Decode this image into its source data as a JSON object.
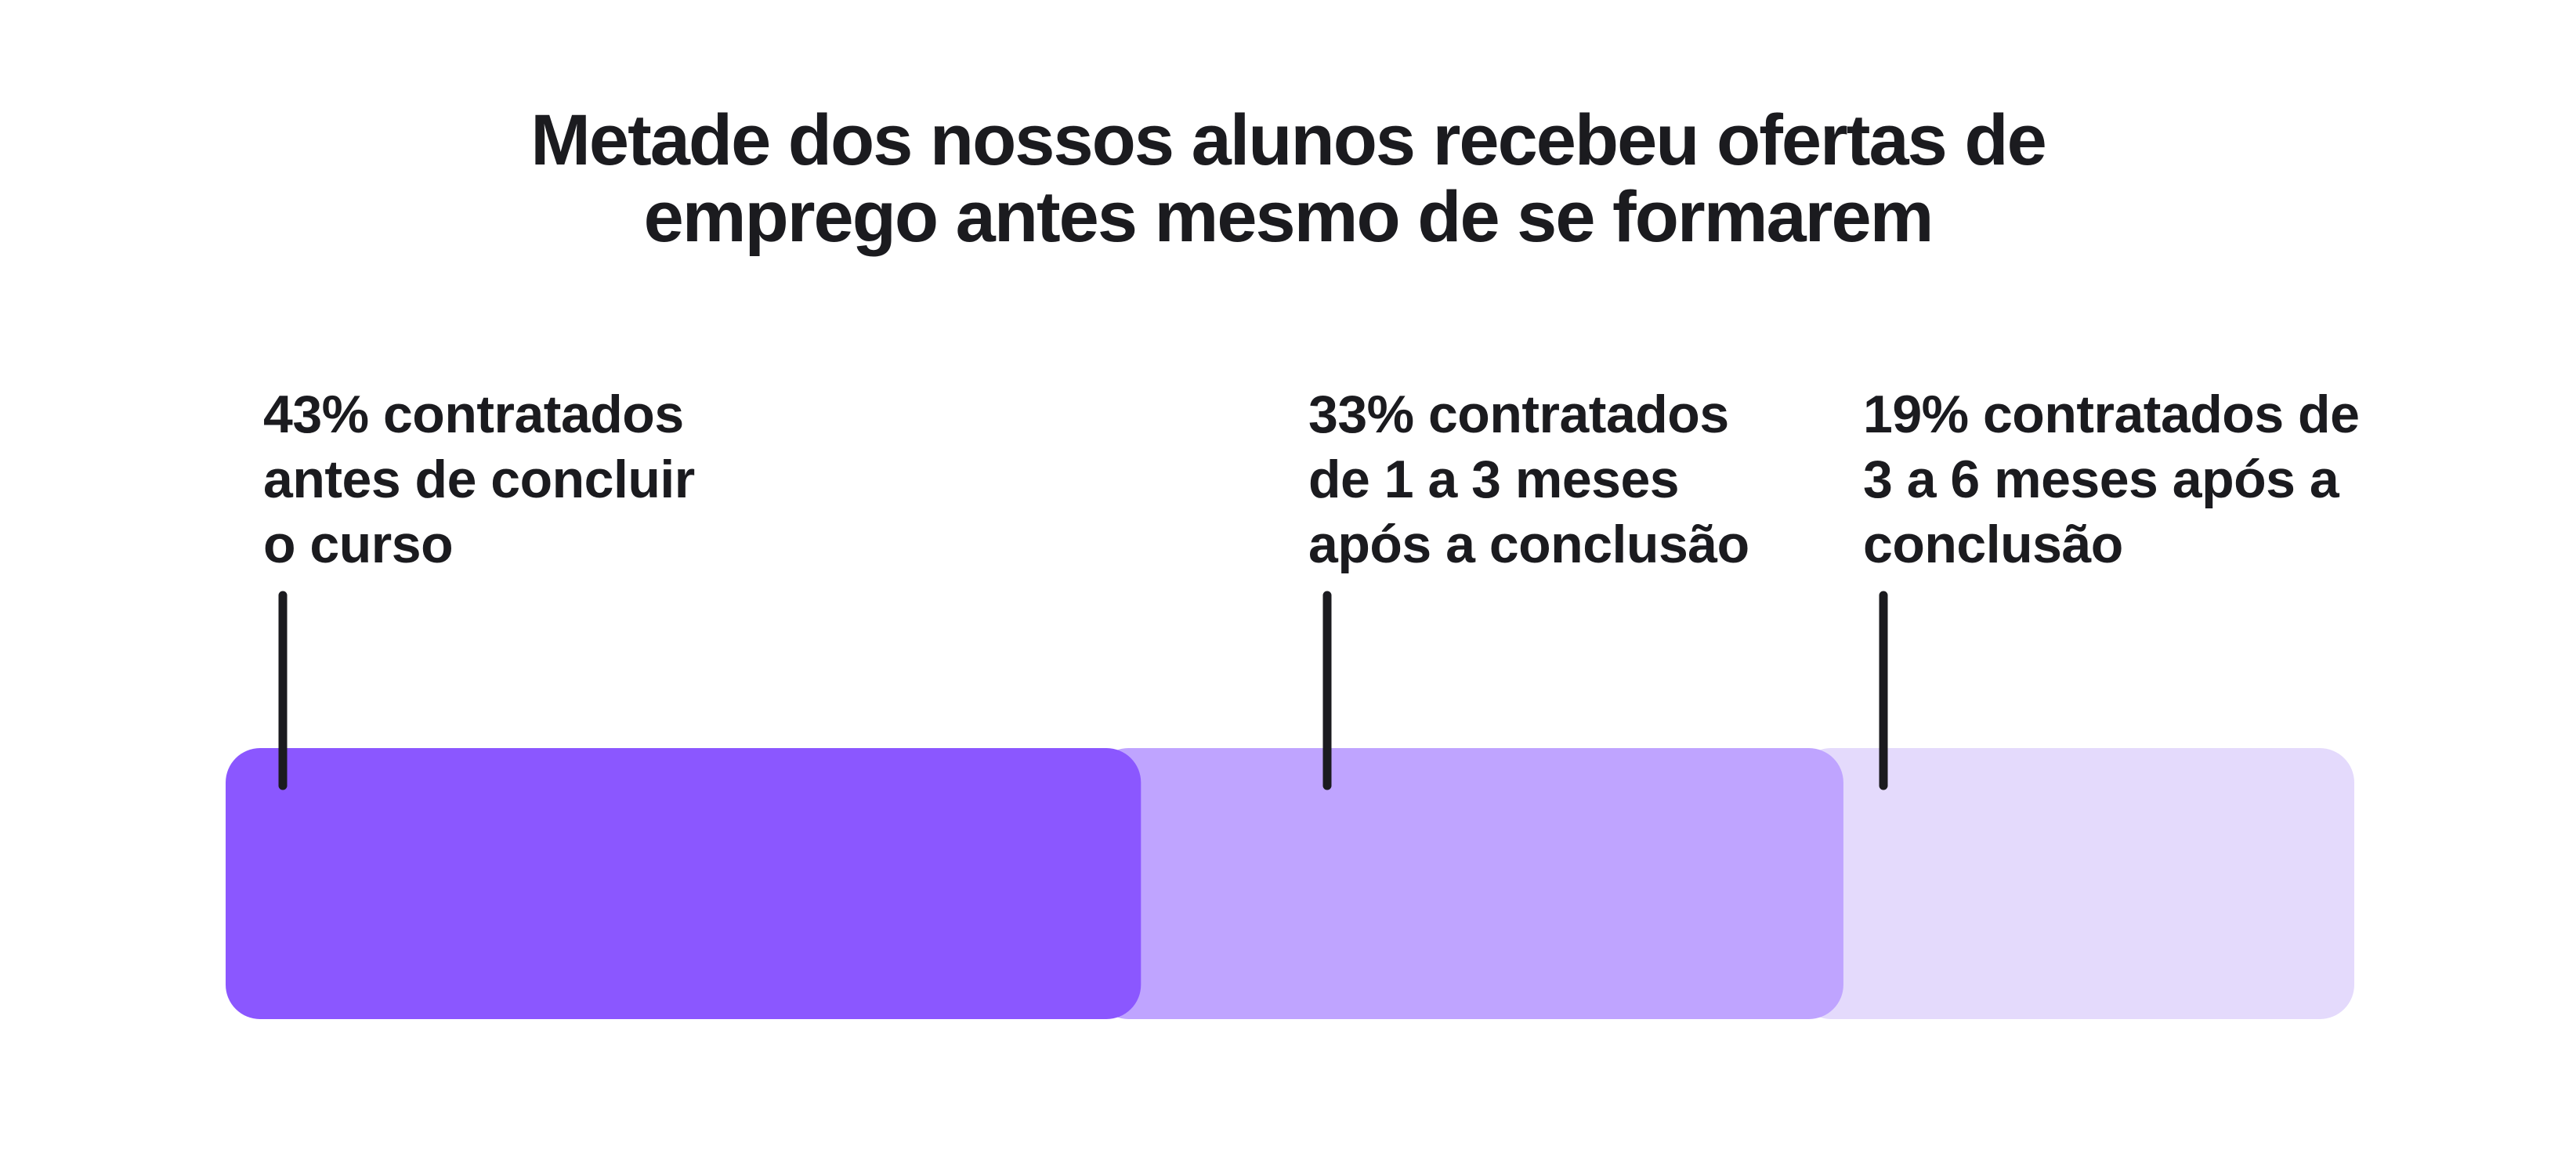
{
  "title": {
    "line1": "Metade dos nossos alunos recebeu ofertas de",
    "line2": "emprego antes mesmo de se formarem"
  },
  "chart_data": {
    "type": "bar",
    "orientation": "horizontal",
    "stacked": true,
    "xlim": [
      0,
      100
    ],
    "categories": [
      "43% contratados antes de concluir o curso",
      "33% contratados de 1 a 3 meses após a conclusão",
      "19% contratados de 3 a 6 meses após a conclusão"
    ],
    "values": [
      43,
      33,
      19
    ],
    "colors": [
      "#8b57ff",
      "#bfa4ff",
      "#e4dafc"
    ],
    "annotations": [
      {
        "lines": [
          "43% contratados",
          "antes de concluir",
          "o curso"
        ]
      },
      {
        "lines": [
          "33% contratados",
          "de 1 a 3 meses",
          "após a conclusão"
        ]
      },
      {
        "lines": [
          "19% contratados de",
          "3 a 6 meses após a",
          "conclusão"
        ]
      }
    ],
    "grid": false,
    "legend": "none"
  },
  "colors": {
    "text": "#1b1b1f",
    "background": "#ffffff"
  }
}
